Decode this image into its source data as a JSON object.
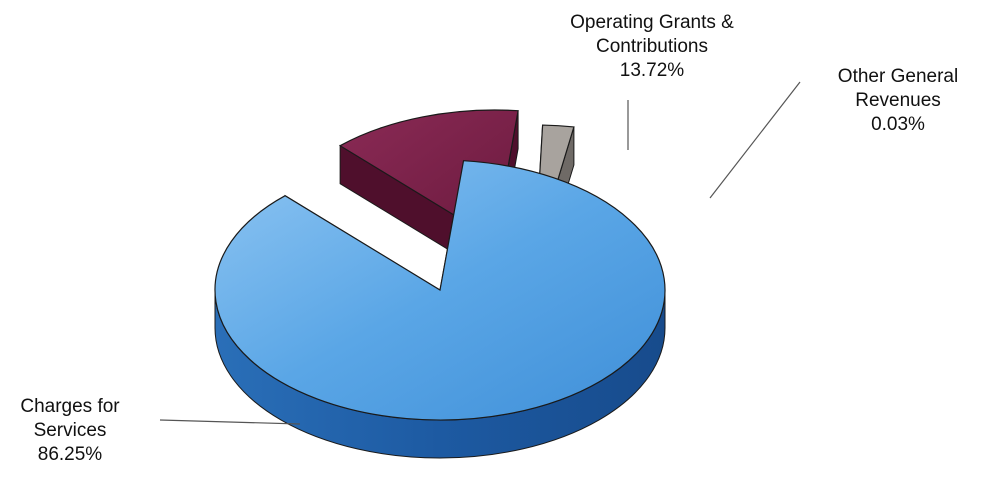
{
  "chart_data": {
    "type": "pie",
    "style": "3d-exploded",
    "slices": [
      {
        "label_lines": [
          "Charges for",
          "Services"
        ],
        "value": 86.25,
        "value_label": "86.25%",
        "color": "#5ba8e8",
        "exploded": false
      },
      {
        "label_lines": [
          "Operating Grants &",
          "Contributions"
        ],
        "value": 13.72,
        "value_label": "13.72%",
        "color": "#7a2048",
        "exploded": true
      },
      {
        "label_lines": [
          "Other General",
          "Revenues"
        ],
        "value": 0.03,
        "value_label": "0.03%",
        "color": "#a8a39e",
        "exploded": true
      }
    ]
  }
}
